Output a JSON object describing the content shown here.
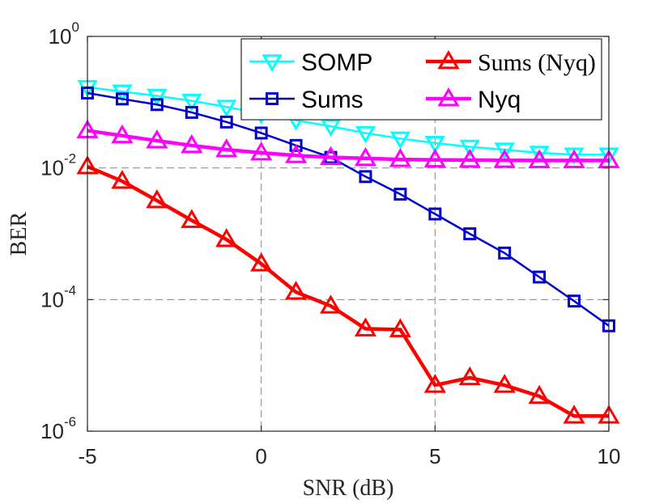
{
  "chart_data": {
    "type": "line",
    "title": "",
    "xlabel": "SNR (dB)",
    "ylabel": "BER",
    "yscale": "log",
    "xlim": [
      -5,
      10
    ],
    "ylim": [
      1e-06,
      1
    ],
    "grid": true,
    "legend_location": "top-right",
    "x": [
      -5,
      -4,
      -3,
      -2,
      -1,
      0,
      1,
      2,
      3,
      4,
      5,
      6,
      7,
      8,
      9,
      10
    ],
    "x_ticks": [
      {
        "value": -5,
        "label": "-5"
      },
      {
        "value": 0,
        "label": "0"
      },
      {
        "value": 5,
        "label": "5"
      },
      {
        "value": 10,
        "label": "10"
      }
    ],
    "y_ticks": [
      {
        "value": 1,
        "base": "10",
        "exponent": "0"
      },
      {
        "value": 0.01,
        "base": "10",
        "exponent": "-2"
      },
      {
        "value": 0.0001,
        "base": "10",
        "exponent": "-4"
      },
      {
        "value": 1e-06,
        "base": "10",
        "exponent": "-6"
      }
    ],
    "series": [
      {
        "name": "SOMP",
        "color": "#00FFFF",
        "marker": "triangle-down",
        "values": [
          0.17,
          0.145,
          0.125,
          0.105,
          0.085,
          0.066,
          0.053,
          0.043,
          0.034,
          0.028,
          0.024,
          0.021,
          0.019,
          0.017,
          0.016,
          0.016
        ]
      },
      {
        "name": "Sums (Nyq)",
        "color": "#FF0000",
        "marker": "triangle-up",
        "values": [
          0.0105,
          0.0063,
          0.0032,
          0.0016,
          0.00082,
          0.00035,
          0.00013,
          8e-05,
          3.6e-05,
          3.5e-05,
          5e-06,
          6.5e-06,
          5e-06,
          3.4e-06,
          1.7e-06,
          1.7e-06
        ]
      },
      {
        "name": "Sums",
        "color": "#0000CD",
        "marker": "square",
        "values": [
          0.138,
          0.112,
          0.092,
          0.07,
          0.05,
          0.034,
          0.022,
          0.0145,
          0.0074,
          0.004,
          0.002,
          0.001,
          0.00051,
          0.00022,
          9.5e-05,
          4e-05
        ]
      },
      {
        "name": "Nyq",
        "color": "#FF00FF",
        "marker": "triangle-up",
        "values": [
          0.037,
          0.031,
          0.026,
          0.022,
          0.019,
          0.017,
          0.0155,
          0.0145,
          0.014,
          0.0135,
          0.0133,
          0.0132,
          0.0131,
          0.013,
          0.013,
          0.013
        ]
      }
    ],
    "legend_order": [
      "SOMP",
      "Sums (Nyq)",
      "Sums",
      "Nyq"
    ]
  }
}
